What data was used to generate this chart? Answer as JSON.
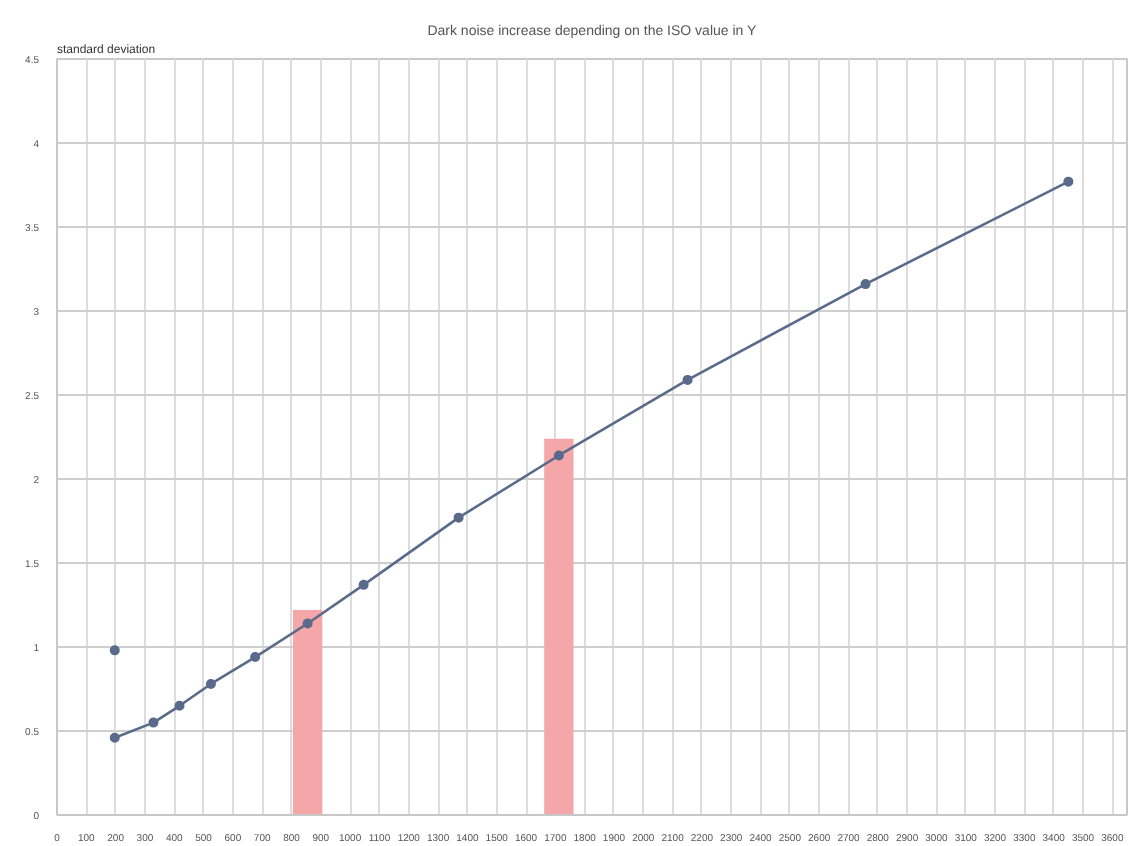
{
  "chart_data": {
    "type": "line",
    "title": "Dark noise increase depending on the ISO value in Y",
    "ylabel": "standard deviation",
    "xlim": [
      0,
      3650
    ],
    "xticks": [
      0,
      100,
      200,
      300,
      400,
      500,
      600,
      700,
      800,
      900,
      1000,
      1100,
      1200,
      1300,
      1400,
      1500,
      1600,
      1700,
      1800,
      1900,
      2000,
      2100,
      2200,
      2300,
      2400,
      2500,
      2600,
      2700,
      2800,
      2900,
      3000,
      3100,
      3200,
      3300,
      3400,
      3500,
      3600
    ],
    "ylim": [
      0,
      4.5
    ],
    "yticks": [
      0,
      0.5,
      1,
      1.5,
      2,
      2.5,
      3,
      3.5,
      4,
      4.5
    ],
    "grid": true,
    "series": [
      {
        "type": "bar",
        "color": "#f4a6a8",
        "x": [
          855,
          1712
        ],
        "values": [
          1.22,
          2.24
        ]
      },
      {
        "color": "#5a6a8a",
        "marker": "circle",
        "line_style": "solid",
        "x": [
          197,
          329,
          418,
          525,
          676,
          855,
          1046,
          1370,
          1712,
          2151,
          2758,
          3450
        ],
        "values": [
          0.46,
          0.55,
          0.65,
          0.78,
          0.94,
          1.14,
          1.37,
          1.77,
          2.14,
          2.59,
          3.16,
          3.77
        ]
      },
      {
        "type": "scatter",
        "color": "#5a6a8a",
        "marker": "circle",
        "x": [
          197
        ],
        "values": [
          0.98
        ]
      }
    ]
  }
}
